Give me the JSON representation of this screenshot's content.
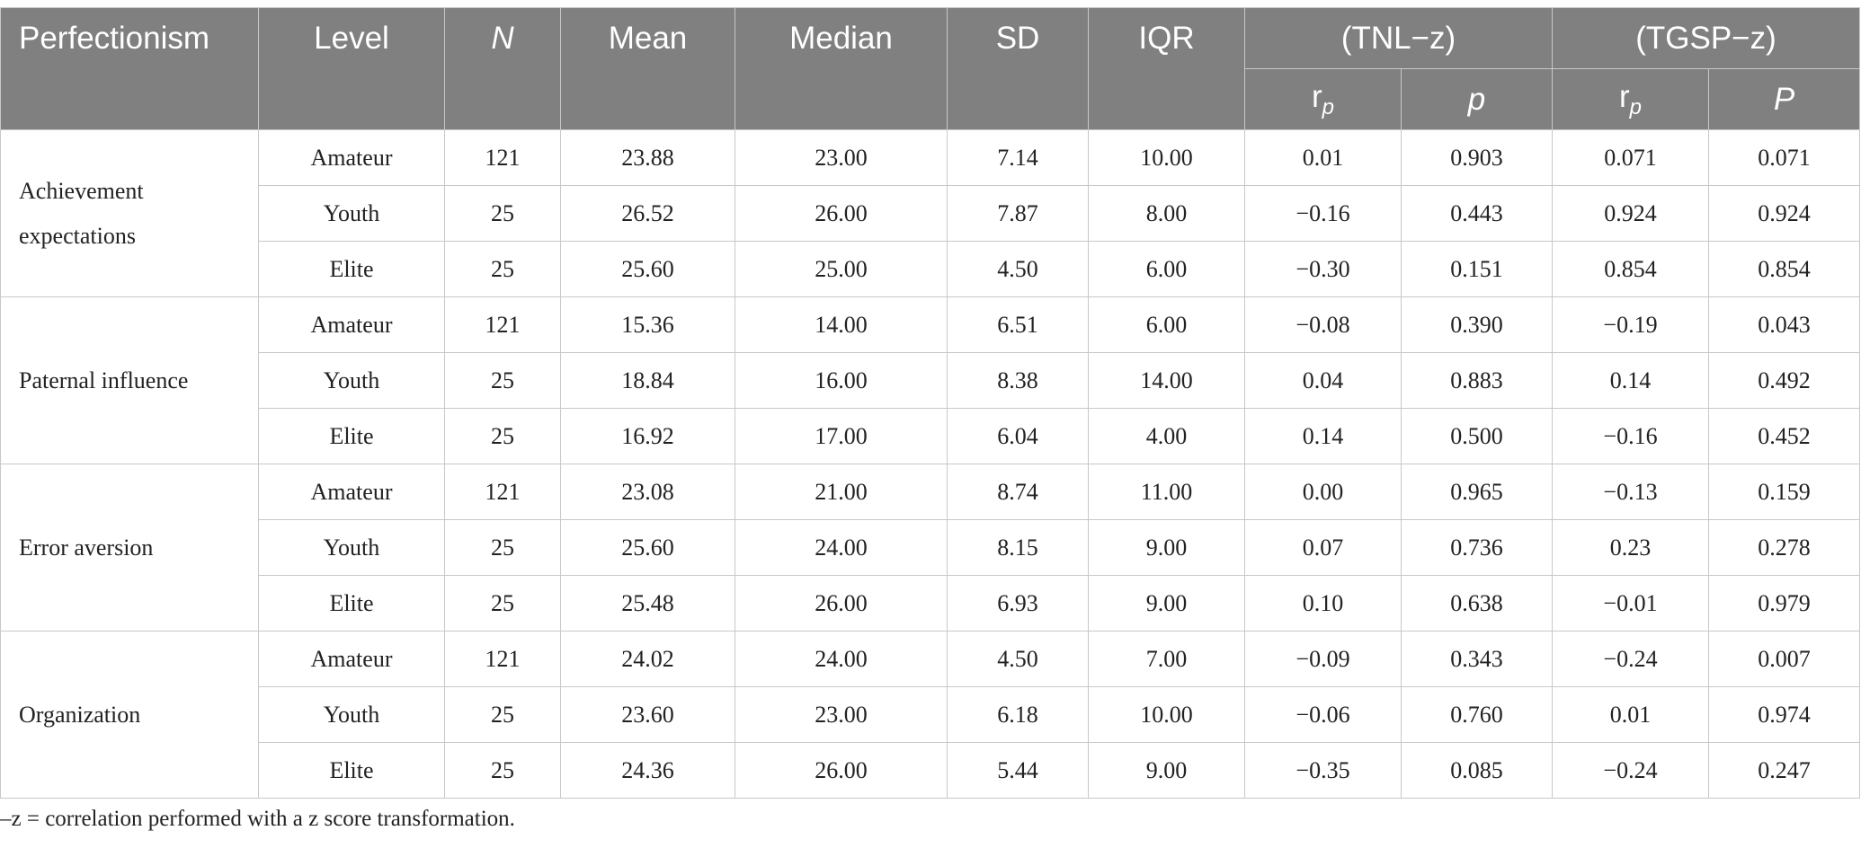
{
  "table": {
    "headers": {
      "perfectionism": "Perfectionism",
      "level": "Level",
      "n": "N",
      "mean": "Mean",
      "median": "Median",
      "sd": "SD",
      "iqr": "IQR",
      "tnl": "(TNL−z)",
      "tgsp": "(TGSP−z)",
      "rp_base": "r",
      "rp_sub": "p",
      "p_lower": "p",
      "p_upper": "P"
    },
    "groups": [
      {
        "name": "Achievement expectations",
        "rows": [
          {
            "level": "Amateur",
            "n": "121",
            "mean": "23.88",
            "median": "23.00",
            "sd": "7.14",
            "iqr": "10.00",
            "tnl_rp": "0.01",
            "tnl_p": "0.903",
            "tgsp_rp": "0.071",
            "tgsp_p": "0.071"
          },
          {
            "level": "Youth",
            "n": "25",
            "mean": "26.52",
            "median": "26.00",
            "sd": "7.87",
            "iqr": "8.00",
            "tnl_rp": "−0.16",
            "tnl_p": "0.443",
            "tgsp_rp": "0.924",
            "tgsp_p": "0.924"
          },
          {
            "level": "Elite",
            "n": "25",
            "mean": "25.60",
            "median": "25.00",
            "sd": "4.50",
            "iqr": "6.00",
            "tnl_rp": "−0.30",
            "tnl_p": "0.151",
            "tgsp_rp": "0.854",
            "tgsp_p": "0.854"
          }
        ]
      },
      {
        "name": "Paternal influence",
        "rows": [
          {
            "level": "Amateur",
            "n": "121",
            "mean": "15.36",
            "median": "14.00",
            "sd": "6.51",
            "iqr": "6.00",
            "tnl_rp": "−0.08",
            "tnl_p": "0.390",
            "tgsp_rp": "−0.19",
            "tgsp_p": "0.043"
          },
          {
            "level": "Youth",
            "n": "25",
            "mean": "18.84",
            "median": "16.00",
            "sd": "8.38",
            "iqr": "14.00",
            "tnl_rp": "0.04",
            "tnl_p": "0.883",
            "tgsp_rp": "0.14",
            "tgsp_p": "0.492"
          },
          {
            "level": "Elite",
            "n": "25",
            "mean": "16.92",
            "median": "17.00",
            "sd": "6.04",
            "iqr": "4.00",
            "tnl_rp": "0.14",
            "tnl_p": "0.500",
            "tgsp_rp": "−0.16",
            "tgsp_p": "0.452"
          }
        ]
      },
      {
        "name": "Error aversion",
        "rows": [
          {
            "level": "Amateur",
            "n": "121",
            "mean": "23.08",
            "median": "21.00",
            "sd": "8.74",
            "iqr": "11.00",
            "tnl_rp": "0.00",
            "tnl_p": "0.965",
            "tgsp_rp": "−0.13",
            "tgsp_p": "0.159"
          },
          {
            "level": "Youth",
            "n": "25",
            "mean": "25.60",
            "median": "24.00",
            "sd": "8.15",
            "iqr": "9.00",
            "tnl_rp": "0.07",
            "tnl_p": "0.736",
            "tgsp_rp": "0.23",
            "tgsp_p": "0.278"
          },
          {
            "level": "Elite",
            "n": "25",
            "mean": "25.48",
            "median": "26.00",
            "sd": "6.93",
            "iqr": "9.00",
            "tnl_rp": "0.10",
            "tnl_p": "0.638",
            "tgsp_rp": "−0.01",
            "tgsp_p": "0.979"
          }
        ]
      },
      {
        "name": "Organization",
        "rows": [
          {
            "level": "Amateur",
            "n": "121",
            "mean": "24.02",
            "median": "24.00",
            "sd": "4.50",
            "iqr": "7.00",
            "tnl_rp": "−0.09",
            "tnl_p": "0.343",
            "tgsp_rp": "−0.24",
            "tgsp_p": "0.007"
          },
          {
            "level": "Youth",
            "n": "25",
            "mean": "23.60",
            "median": "23.00",
            "sd": "6.18",
            "iqr": "10.00",
            "tnl_rp": "−0.06",
            "tnl_p": "0.760",
            "tgsp_rp": "0.01",
            "tgsp_p": "0.974"
          },
          {
            "level": "Elite",
            "n": "25",
            "mean": "24.36",
            "median": "26.00",
            "sd": "5.44",
            "iqr": "9.00",
            "tnl_rp": "−0.35",
            "tnl_p": "0.085",
            "tgsp_rp": "−0.24",
            "tgsp_p": "0.247"
          }
        ]
      }
    ]
  },
  "footnote": "–z = correlation performed with a z score transformation."
}
